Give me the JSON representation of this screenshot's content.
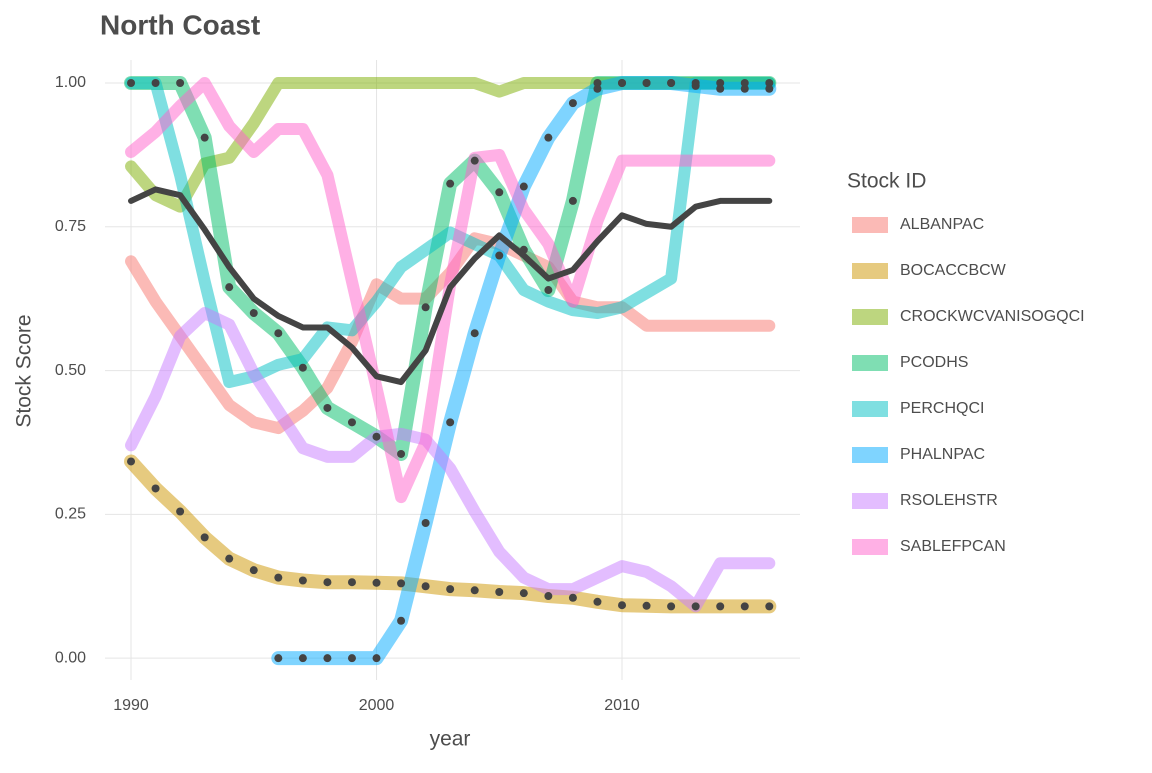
{
  "chart_data": {
    "type": "line",
    "title": "North Coast",
    "x_label": "year",
    "y_label": "Stock Score",
    "legend_title": "Stock ID",
    "legend": "right",
    "grid": true,
    "x": [
      1990,
      1991,
      1992,
      1993,
      1994,
      1995,
      1996,
      1997,
      1998,
      1999,
      2000,
      2001,
      2002,
      2003,
      2004,
      2005,
      2006,
      2007,
      2008,
      2009,
      2010,
      2011,
      2012,
      2013,
      2014,
      2015,
      2016
    ],
    "xlim": [
      1988.94,
      2017.25
    ],
    "ylim": [
      -0.038,
      1.04
    ],
    "xticks": [
      1990,
      2000,
      2010
    ],
    "yticks": [
      {
        "value": 0,
        "label": "0.00"
      },
      {
        "value": 0.25,
        "label": "0.25"
      },
      {
        "value": 0.5,
        "label": "0.50"
      },
      {
        "value": 0.75,
        "label": "0.75"
      },
      {
        "value": 1,
        "label": "1.00"
      }
    ],
    "series": [
      {
        "name": "ALBANPAC",
        "color": "#F8766D",
        "points": false,
        "values": [
          0.69,
          0.62,
          0.56,
          0.5,
          0.44,
          0.41,
          0.4,
          0.43,
          0.47,
          0.55,
          0.65,
          0.625,
          0.625,
          0.67,
          0.73,
          0.72,
          0.7,
          0.68,
          0.62,
          0.61,
          0.61,
          0.578,
          0.578,
          0.578,
          0.578,
          0.578,
          0.578
        ]
      },
      {
        "name": "BOCACCBCW",
        "color": "#CD9600",
        "points": true,
        "values": [
          0.342,
          0.295,
          0.255,
          0.21,
          0.173,
          0.153,
          0.14,
          0.135,
          0.132,
          0.132,
          0.131,
          0.13,
          0.125,
          0.12,
          0.118,
          0.115,
          0.113,
          0.108,
          0.105,
          0.098,
          0.092,
          0.091,
          0.09,
          0.09,
          0.09,
          0.09,
          0.09
        ]
      },
      {
        "name": "CROCKWCVANISOGQCI",
        "color": "#7CAE00",
        "points": false,
        "values": [
          0.855,
          0.805,
          0.785,
          0.86,
          0.87,
          0.93,
          1,
          1,
          1,
          1,
          1,
          1,
          1,
          1,
          1,
          0.985,
          1,
          1,
          1,
          1,
          1,
          1,
          1,
          1,
          1,
          1,
          1
        ]
      },
      {
        "name": "PCODHS",
        "color": "#00BE67",
        "points": true,
        "values": [
          1,
          1,
          1,
          0.905,
          0.645,
          0.6,
          0.565,
          0.505,
          0.435,
          0.41,
          0.385,
          0.355,
          0.61,
          0.825,
          0.865,
          0.81,
          0.71,
          0.64,
          0.795,
          1,
          1,
          1,
          1,
          1,
          1,
          1,
          1
        ]
      },
      {
        "name": "PERCHQCI",
        "color": "#00BFC4",
        "points": false,
        "values": [
          1,
          1,
          0.84,
          0.655,
          0.48,
          0.49,
          0.51,
          0.52,
          0.575,
          0.57,
          0.62,
          0.68,
          0.71,
          0.74,
          0.72,
          0.7,
          0.64,
          0.62,
          0.605,
          0.6,
          0.61,
          0.635,
          0.66,
          1,
          1,
          1,
          1
        ]
      },
      {
        "name": "PHALNPAC",
        "color": "#00A9FF",
        "points": true,
        "values": [
          null,
          null,
          null,
          null,
          null,
          null,
          0,
          0,
          0,
          0,
          0,
          0.065,
          0.235,
          0.41,
          0.565,
          0.7,
          0.82,
          0.905,
          0.965,
          0.99,
          1,
          1,
          1,
          0.995,
          0.99,
          0.99,
          0.99
        ]
      },
      {
        "name": "RSOLEHSTR",
        "color": "#C77CFF",
        "points": false,
        "values": [
          0.37,
          0.455,
          0.56,
          0.6,
          0.58,
          0.495,
          0.43,
          0.365,
          0.35,
          0.35,
          0.385,
          0.39,
          0.38,
          0.33,
          0.255,
          0.185,
          0.14,
          0.12,
          0.12,
          0.14,
          0.16,
          0.15,
          0.125,
          0.09,
          0.165,
          0.165,
          0.165
        ]
      },
      {
        "name": "SABLEFPCAN",
        "color": "#FF61CC",
        "points": false,
        "values": [
          0.88,
          0.915,
          0.96,
          1,
          0.925,
          0.88,
          0.92,
          0.92,
          0.84,
          0.655,
          0.47,
          0.28,
          0.375,
          0.65,
          0.87,
          0.875,
          0.78,
          0.72,
          0.62,
          0.76,
          0.865,
          0.865,
          0.865,
          0.865,
          0.865,
          0.865,
          0.865
        ]
      }
    ],
    "overall": {
      "color": "#444444",
      "values": [
        0.795,
        0.815,
        0.805,
        0.745,
        0.68,
        0.625,
        0.595,
        0.575,
        0.575,
        0.54,
        0.49,
        0.48,
        0.535,
        0.645,
        0.695,
        0.735,
        0.7,
        0.66,
        0.675,
        0.725,
        0.77,
        0.755,
        0.75,
        0.785,
        0.795,
        0.795,
        0.795
      ]
    }
  }
}
